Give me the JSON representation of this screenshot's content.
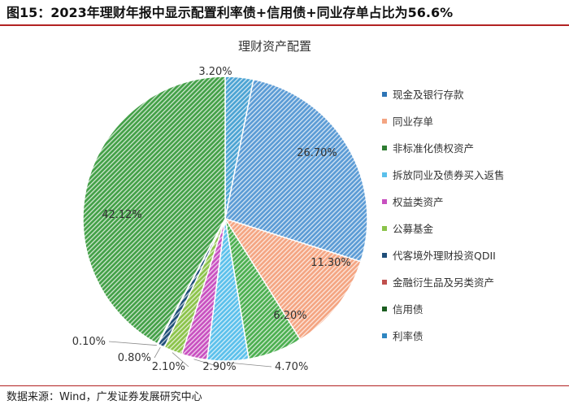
{
  "figure": {
    "title": "图15：2023年理财年报中显示配置利率债+信用债+同业存单占比为56.6%",
    "source": "数据来源：Wind，广发证券发展研究中心"
  },
  "chart_data": {
    "type": "pie",
    "title": "理财资产配置",
    "legend_position": "right",
    "start": "top, clockwise",
    "unit": "%",
    "slices": [
      {
        "name": "利率债",
        "value": 3.2,
        "label": "3.20%",
        "color": "#4BA3D3"
      },
      {
        "name": "现金及银行存款",
        "value": 26.7,
        "label": "26.70%",
        "color": "#5B9BD5"
      },
      {
        "name": "同业存单",
        "value": 11.3,
        "label": "11.30%",
        "color": "#F4A582"
      },
      {
        "name": "非标准化债权资产",
        "value": 6.2,
        "label": "6.20%",
        "color": "#4CAF50"
      },
      {
        "name": "拆放同业及债券买入返售",
        "value": 4.7,
        "label": "4.70%",
        "color": "#5BC0EB"
      },
      {
        "name": "权益类资产",
        "value": 2.9,
        "label": "2.90%",
        "color": "#C850C0"
      },
      {
        "name": "公募基金",
        "value": 2.1,
        "label": "2.10%",
        "color": "#8BC34A"
      },
      {
        "name": "代客境外理财投资QDII",
        "value": 0.8,
        "label": "0.80%",
        "color": "#1F4E79"
      },
      {
        "name": "金融衍生品及另类资产",
        "value": 0.1,
        "label": "0.10%",
        "color": "#C0504D"
      },
      {
        "name": "信用债",
        "value": 42.12,
        "label": "42.12%",
        "color": "#43A047"
      }
    ],
    "legend": [
      {
        "name": "现金及银行存款",
        "color": "#2E75B6"
      },
      {
        "name": "同业存单",
        "color": "#F4A582"
      },
      {
        "name": "非标准化债权资产",
        "color": "#2E7D32"
      },
      {
        "name": "拆放同业及债券买入返售",
        "color": "#5BC0EB"
      },
      {
        "name": "权益类资产",
        "color": "#C850C0"
      },
      {
        "name": "公募基金",
        "color": "#8BC34A"
      },
      {
        "name": "代客境外理财投资QDII",
        "color": "#1F4E79"
      },
      {
        "name": "金融衍生品及另类资产",
        "color": "#C0504D"
      },
      {
        "name": "信用债",
        "color": "#1B5E20"
      },
      {
        "name": "利率债",
        "color": "#2E86C1"
      }
    ]
  }
}
